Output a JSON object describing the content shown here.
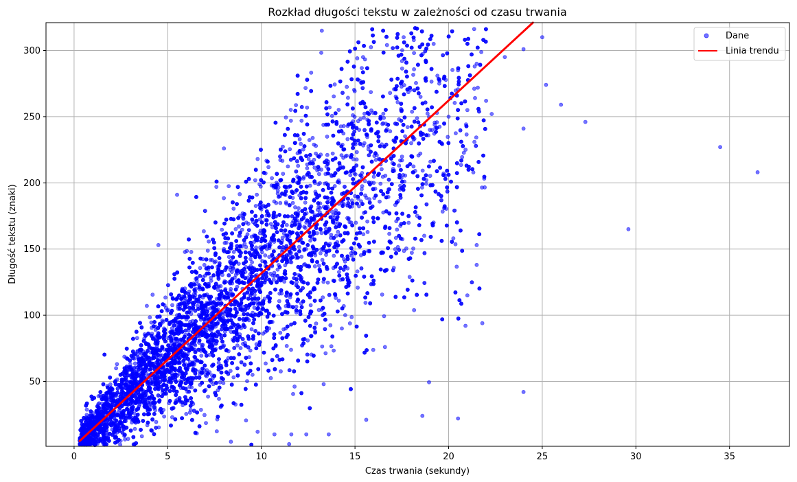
{
  "chart_data": {
    "type": "scatter",
    "title": "Rozkład długości tekstu w zależności od czasu trwania",
    "xlabel": "Czas trwania (sekundy)",
    "ylabel": "Długość tekstu (znaki)",
    "xlim": [
      -1.5,
      38.2
    ],
    "ylim": [
      1,
      321
    ],
    "xticks": [
      0,
      5,
      10,
      15,
      20,
      25,
      30,
      35
    ],
    "yticks": [
      50,
      100,
      150,
      200,
      250,
      300
    ],
    "grid": true,
    "legend_position": "top-right",
    "colors": {
      "points": "#0000ff",
      "trend": "#ff0000"
    },
    "series": [
      {
        "name": "Dane",
        "kind": "scatter",
        "points": [
          [
            0.5,
            6
          ],
          [
            0.8,
            10
          ],
          [
            1.0,
            14
          ],
          [
            1.2,
            20
          ],
          [
            1.5,
            22
          ],
          [
            1.8,
            30
          ],
          [
            2.0,
            25
          ],
          [
            2.2,
            40
          ],
          [
            2.5,
            35
          ],
          [
            2.8,
            50
          ],
          [
            3.0,
            45
          ],
          [
            3.2,
            60
          ],
          [
            3.5,
            55
          ],
          [
            3.8,
            70
          ],
          [
            4.0,
            75
          ],
          [
            4.2,
            62
          ],
          [
            4.5,
            85
          ],
          [
            4.8,
            90
          ],
          [
            5.0,
            70
          ],
          [
            5.2,
            95
          ],
          [
            5.5,
            100
          ],
          [
            5.8,
            80
          ],
          [
            6.0,
            110
          ],
          [
            6.2,
            95
          ],
          [
            6.5,
            120
          ],
          [
            6.8,
            105
          ],
          [
            7.0,
            130
          ],
          [
            7.2,
            90
          ],
          [
            7.5,
            140
          ],
          [
            7.8,
            115
          ],
          [
            8.0,
            150
          ],
          [
            8.2,
            100
          ],
          [
            8.5,
            135
          ],
          [
            8.8,
            160
          ],
          [
            9.0,
            120
          ],
          [
            9.2,
            170
          ],
          [
            9.5,
            140
          ],
          [
            9.8,
            110
          ],
          [
            10.0,
            180
          ],
          [
            10.3,
            150
          ],
          [
            10.6,
            130
          ],
          [
            11.0,
            190
          ],
          [
            11.3,
            160
          ],
          [
            11.6,
            140
          ],
          [
            12.0,
            200
          ],
          [
            12.4,
            170
          ],
          [
            12.8,
            150
          ],
          [
            13.2,
            210
          ],
          [
            13.6,
            180
          ],
          [
            14.0,
            160
          ],
          [
            14.5,
            220
          ],
          [
            15.0,
            190
          ],
          [
            15.5,
            230
          ],
          [
            16.0,
            200
          ],
          [
            16.5,
            245
          ],
          [
            17.0,
            215
          ],
          [
            17.5,
            255
          ],
          [
            18.0,
            230
          ],
          [
            18.5,
            265
          ],
          [
            19.0,
            240
          ],
          [
            19.5,
            275
          ],
          [
            20.0,
            250
          ],
          [
            20.5,
            285
          ],
          [
            21.0,
            255
          ],
          [
            21.5,
            290
          ],
          [
            22.0,
            262
          ],
          [
            23.0,
            295
          ],
          [
            24.0,
            301
          ],
          [
            25.0,
            310
          ],
          [
            17.6,
            310
          ],
          [
            19.2,
            305
          ],
          [
            22.3,
            252
          ],
          [
            24.0,
            241
          ],
          [
            25.2,
            274
          ],
          [
            26.0,
            259
          ],
          [
            27.3,
            246
          ],
          [
            34.5,
            227
          ],
          [
            36.5,
            208
          ],
          [
            29.6,
            165
          ],
          [
            21.5,
            153
          ],
          [
            21.5,
            138
          ],
          [
            20.9,
            92
          ],
          [
            21.8,
            94
          ],
          [
            24.0,
            42
          ],
          [
            18.6,
            24
          ],
          [
            20.5,
            22
          ],
          [
            15.6,
            21
          ],
          [
            8.0,
            226
          ],
          [
            9.8,
            218
          ],
          [
            8.8,
            167
          ],
          [
            7.6,
            197
          ],
          [
            5.5,
            191
          ],
          [
            4.5,
            153
          ],
          [
            19.2,
            170
          ],
          [
            18.7,
            160
          ],
          [
            16.6,
            76
          ],
          [
            14.3,
            90
          ],
          [
            13.6,
            10
          ],
          [
            12.4,
            10
          ],
          [
            11.6,
            10
          ],
          [
            10.7,
            10
          ]
        ]
      },
      {
        "name": "Linia trendu",
        "kind": "line",
        "points": [
          [
            0.3,
            5
          ],
          [
            24.5,
            321
          ]
        ]
      }
    ]
  }
}
